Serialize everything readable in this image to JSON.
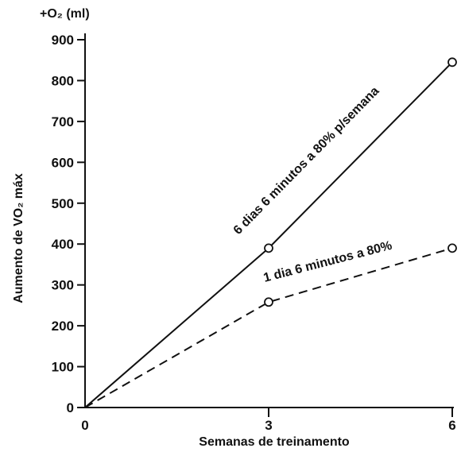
{
  "chart_data": {
    "type": "line",
    "xlabel": "Semanas de treinamento",
    "ylabel": "Aumento de VO₂ máx",
    "yunit": "+O₂ (ml)",
    "x_ticks": [
      "0",
      "3",
      "6"
    ],
    "y_ticks": [
      "0",
      "100",
      "200",
      "300",
      "400",
      "500",
      "600",
      "700",
      "800",
      "900"
    ],
    "xlim": [
      0,
      6
    ],
    "ylim": [
      0,
      900
    ],
    "grid": false,
    "series": [
      {
        "name": "6 dias 6 minutos a 80% p/semana",
        "style": "solid",
        "points": [
          [
            0,
            0
          ],
          [
            3,
            390
          ],
          [
            6,
            845
          ]
        ]
      },
      {
        "name": "1 dia 6 minutos a 80%",
        "style": "dashed",
        "points": [
          [
            0,
            0
          ],
          [
            3,
            258
          ],
          [
            6,
            390
          ]
        ]
      }
    ]
  }
}
